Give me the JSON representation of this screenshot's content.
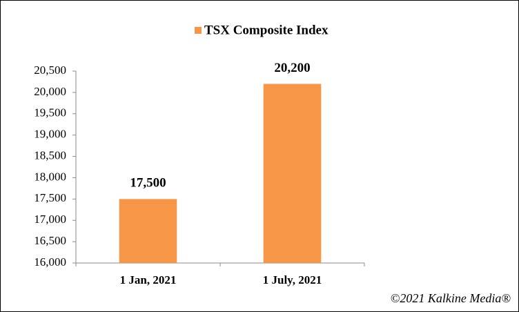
{
  "chart_data": {
    "type": "bar",
    "categories": [
      "1 Jan, 2021",
      "1 July, 2021"
    ],
    "series": [
      {
        "name": "TSX Composite Index",
        "color": "#f79646",
        "values": [
          17500,
          20200
        ],
        "value_labels": [
          "17,500",
          "20,200"
        ]
      }
    ],
    "ylim": [
      16000,
      20500
    ],
    "yticks": [
      {
        "value": 16000,
        "label": "16,000"
      },
      {
        "value": 16500,
        "label": "16,500"
      },
      {
        "value": 17000,
        "label": "17,000"
      },
      {
        "value": 17500,
        "label": "17,500"
      },
      {
        "value": 18000,
        "label": "18,000"
      },
      {
        "value": 18500,
        "label": "18,500"
      },
      {
        "value": 19000,
        "label": "19,000"
      },
      {
        "value": 19500,
        "label": "19,500"
      },
      {
        "value": 20000,
        "label": "20,000"
      },
      {
        "value": 20500,
        "label": "20,500"
      }
    ],
    "grid": false,
    "legend": "top",
    "annotation": "©2021 Kalkine Media®"
  }
}
